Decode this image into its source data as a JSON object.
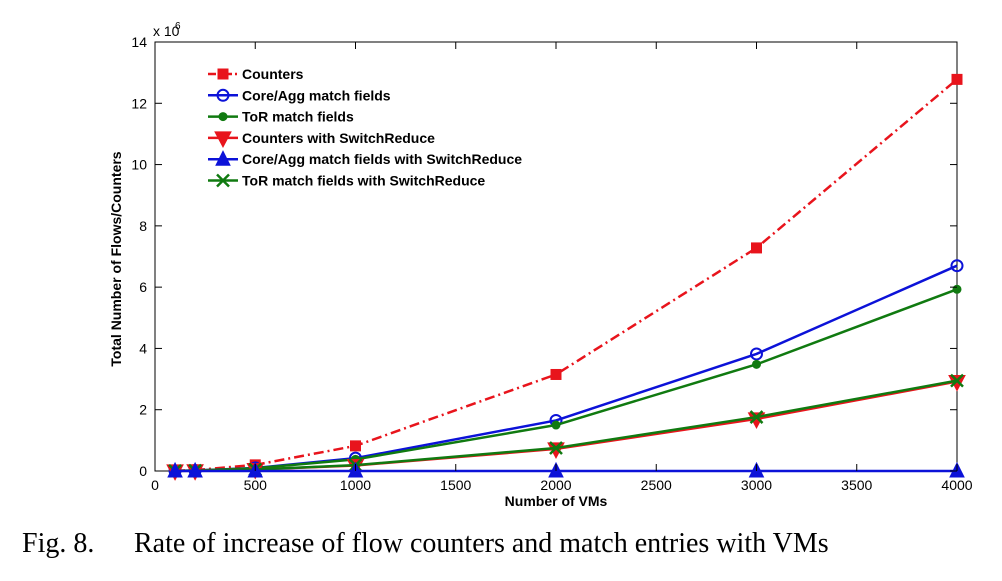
{
  "caption": {
    "label": "Fig. 8.",
    "text": "Rate of increase of flow counters and match entries with VMs"
  },
  "chart_data": {
    "type": "line",
    "xlabel": "Number of VMs",
    "ylabel": "Total Number of Flows/Counters",
    "xlim": [
      0,
      4000
    ],
    "ylim": [
      0,
      14
    ],
    "y_multiplier_label": "x 10",
    "y_multiplier_exponent": "6",
    "xticks": [
      0,
      500,
      1000,
      1500,
      2000,
      2500,
      3000,
      3500,
      4000
    ],
    "yticks": [
      0,
      2,
      4,
      6,
      8,
      10,
      12,
      14
    ],
    "legend_position": "top-left",
    "series": [
      {
        "name": "Counters",
        "color": "#e8141c",
        "line_style": "dashdot",
        "marker": "square",
        "x": [
          100,
          200,
          500,
          1000,
          2000,
          3000,
          4000
        ],
        "y": [
          0.01,
          0.03,
          0.2,
          0.82,
          3.15,
          7.28,
          12.78
        ]
      },
      {
        "name": "Core/Agg match fields",
        "color": "#0c12d8",
        "line_style": "solid",
        "marker": "circle",
        "x": [
          100,
          200,
          500,
          1000,
          2000,
          3000,
          4000
        ],
        "y": [
          0.005,
          0.015,
          0.1,
          0.42,
          1.65,
          3.82,
          6.7
        ]
      },
      {
        "name": "ToR match fields",
        "color": "#107a10",
        "line_style": "solid",
        "marker": "dot",
        "x": [
          100,
          200,
          500,
          1000,
          2000,
          3000,
          4000
        ],
        "y": [
          0.005,
          0.015,
          0.09,
          0.38,
          1.5,
          3.48,
          5.93
        ]
      },
      {
        "name": "Counters with SwitchReduce",
        "color": "#e8141c",
        "line_style": "solid",
        "marker": "triangle-down",
        "x": [
          100,
          200,
          500,
          1000,
          2000,
          3000,
          4000
        ],
        "y": [
          0.005,
          0.01,
          0.05,
          0.18,
          0.72,
          1.7,
          2.92
        ]
      },
      {
        "name": "Core/Agg match fields with SwitchReduce",
        "color": "#0c12d8",
        "line_style": "solid",
        "marker": "triangle-up",
        "x": [
          100,
          200,
          500,
          1000,
          2000,
          3000,
          4000
        ],
        "y": [
          0,
          0,
          0,
          0,
          0,
          0,
          0
        ]
      },
      {
        "name": "ToR match fields with SwitchReduce",
        "color": "#107a10",
        "line_style": "solid",
        "marker": "x",
        "x": [
          100,
          200,
          500,
          1000,
          2000,
          3000,
          4000
        ],
        "y": [
          0.005,
          0.01,
          0.05,
          0.19,
          0.75,
          1.76,
          2.95
        ]
      }
    ]
  }
}
